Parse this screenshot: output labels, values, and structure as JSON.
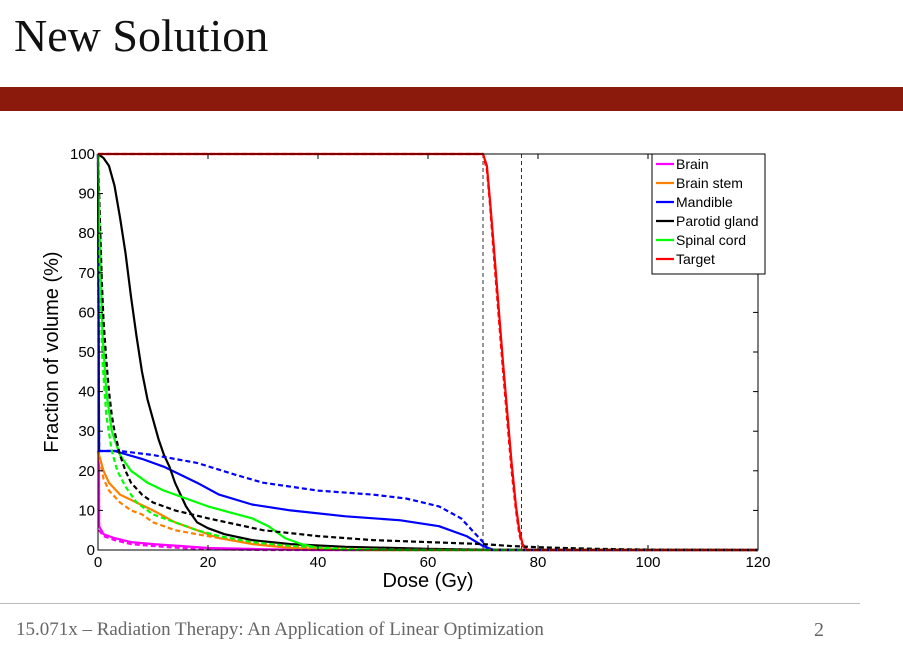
{
  "slide": {
    "title": "New Solution",
    "footer": "15.071x – Radiation Therapy: An Application of  Linear Optimization",
    "page_number": "2",
    "accent_color": "#8b1a0c"
  },
  "chart_data": {
    "type": "line",
    "title": "",
    "xlabel": "Dose (Gy)",
    "ylabel": "Fraction of volume (%)",
    "xlim": [
      0,
      120
    ],
    "ylim": [
      0,
      100
    ],
    "xticks": [
      0,
      20,
      40,
      60,
      80,
      100,
      120
    ],
    "yticks": [
      0,
      10,
      20,
      30,
      40,
      50,
      60,
      70,
      80,
      90,
      100
    ],
    "grid": false,
    "legend_position": "top-right",
    "reference_lines_x": [
      70,
      77
    ],
    "series": [
      {
        "name": "Brain",
        "color": "#ff00ff",
        "style": "solid",
        "points": [
          [
            0,
            100
          ],
          [
            0.2,
            6
          ],
          [
            1,
            4
          ],
          [
            3,
            3
          ],
          [
            6,
            2
          ],
          [
            10,
            1.5
          ],
          [
            15,
            1
          ],
          [
            20,
            0.5
          ],
          [
            30,
            0.2
          ],
          [
            40,
            0
          ],
          [
            120,
            0
          ]
        ]
      },
      {
        "name": "Brain stem",
        "color": "#ff8000",
        "style": "solid",
        "points": [
          [
            0,
            25
          ],
          [
            1,
            20
          ],
          [
            2,
            17
          ],
          [
            4,
            14
          ],
          [
            7,
            12
          ],
          [
            10,
            10
          ],
          [
            14,
            7
          ],
          [
            18,
            5
          ],
          [
            22,
            3
          ],
          [
            28,
            1.5
          ],
          [
            35,
            0.5
          ],
          [
            45,
            0
          ],
          [
            120,
            0
          ]
        ]
      },
      {
        "name": "Mandible",
        "color": "#0000ff",
        "style": "solid",
        "points": [
          [
            0,
            100
          ],
          [
            0.2,
            25
          ],
          [
            3,
            25
          ],
          [
            8,
            23
          ],
          [
            12,
            21
          ],
          [
            18,
            17
          ],
          [
            22,
            14
          ],
          [
            28,
            11.5
          ],
          [
            35,
            10
          ],
          [
            45,
            8.5
          ],
          [
            55,
            7.5
          ],
          [
            62,
            6
          ],
          [
            67,
            3.5
          ],
          [
            70,
            1
          ],
          [
            72,
            0
          ],
          [
            120,
            0
          ]
        ]
      },
      {
        "name": "Parotid gland",
        "color": "#000000",
        "style": "solid",
        "points": [
          [
            0,
            100
          ],
          [
            1,
            99
          ],
          [
            2,
            97
          ],
          [
            3,
            92
          ],
          [
            4,
            84
          ],
          [
            5,
            75
          ],
          [
            6,
            64
          ],
          [
            7,
            54
          ],
          [
            8,
            45
          ],
          [
            9,
            38
          ],
          [
            10,
            33
          ],
          [
            11,
            28
          ],
          [
            12,
            24
          ],
          [
            13,
            21
          ],
          [
            14,
            17
          ],
          [
            15,
            14
          ],
          [
            16,
            11
          ],
          [
            17,
            9
          ],
          [
            18,
            7
          ],
          [
            20,
            5.5
          ],
          [
            23,
            4
          ],
          [
            28,
            2.5
          ],
          [
            35,
            1.5
          ],
          [
            45,
            0.8
          ],
          [
            60,
            0.3
          ],
          [
            70,
            0.1
          ],
          [
            120,
            0
          ]
        ]
      },
      {
        "name": "Spinal cord",
        "color": "#00ff00",
        "style": "solid",
        "points": [
          [
            0,
            100
          ],
          [
            0.3,
            80
          ],
          [
            0.8,
            55
          ],
          [
            1.5,
            40
          ],
          [
            2.5,
            30
          ],
          [
            4,
            24
          ],
          [
            6,
            20
          ],
          [
            9,
            17
          ],
          [
            12,
            15
          ],
          [
            16,
            13
          ],
          [
            20,
            11
          ],
          [
            24,
            9.5
          ],
          [
            28,
            8
          ],
          [
            31,
            6
          ],
          [
            34,
            3
          ],
          [
            37,
            1.5
          ],
          [
            40,
            0.5
          ],
          [
            45,
            0
          ],
          [
            120,
            0
          ]
        ]
      },
      {
        "name": "Target",
        "color": "#ff0000",
        "style": "solid",
        "points": [
          [
            0,
            100
          ],
          [
            70,
            100
          ],
          [
            70.7,
            97
          ],
          [
            71.3,
            88
          ],
          [
            72,
            76
          ],
          [
            72.8,
            62
          ],
          [
            73.6,
            48
          ],
          [
            74.4,
            35
          ],
          [
            75.2,
            22
          ],
          [
            76,
            11
          ],
          [
            76.6,
            5
          ],
          [
            77.2,
            1.5
          ],
          [
            78,
            0
          ],
          [
            120,
            0
          ]
        ]
      },
      {
        "name": "",
        "color": "#ff00ff",
        "style": "dashed",
        "points": [
          [
            0,
            100
          ],
          [
            0.2,
            5
          ],
          [
            1,
            3.5
          ],
          [
            3,
            2.5
          ],
          [
            6,
            1.5
          ],
          [
            10,
            1
          ],
          [
            15,
            0.5
          ],
          [
            20,
            0.2
          ],
          [
            30,
            0
          ],
          [
            120,
            0
          ]
        ]
      },
      {
        "name": "",
        "color": "#ff8000",
        "style": "dashed",
        "points": [
          [
            0,
            25
          ],
          [
            1,
            18
          ],
          [
            2,
            15
          ],
          [
            4,
            12
          ],
          [
            6,
            10
          ],
          [
            8,
            9
          ],
          [
            10,
            7
          ],
          [
            14,
            5
          ],
          [
            18,
            4
          ],
          [
            22,
            3
          ],
          [
            30,
            1.5
          ],
          [
            40,
            0.5
          ],
          [
            50,
            0
          ],
          [
            120,
            0
          ]
        ]
      },
      {
        "name": "",
        "color": "#0000ff",
        "style": "dashed",
        "points": [
          [
            0,
            100
          ],
          [
            0.2,
            25
          ],
          [
            4,
            25
          ],
          [
            10,
            24
          ],
          [
            18,
            22
          ],
          [
            25,
            19
          ],
          [
            30,
            17
          ],
          [
            40,
            15
          ],
          [
            50,
            14
          ],
          [
            56,
            13
          ],
          [
            62,
            11
          ],
          [
            66,
            8
          ],
          [
            68,
            5
          ],
          [
            70,
            2
          ],
          [
            71,
            0
          ],
          [
            120,
            0
          ]
        ]
      },
      {
        "name": "",
        "color": "#000000",
        "style": "dashed",
        "points": [
          [
            0,
            100
          ],
          [
            0.3,
            85
          ],
          [
            0.7,
            68
          ],
          [
            1,
            58
          ],
          [
            1.5,
            48
          ],
          [
            2,
            40
          ],
          [
            2.5,
            34
          ],
          [
            3,
            30
          ],
          [
            4,
            24
          ],
          [
            5,
            20
          ],
          [
            6,
            17
          ],
          [
            8,
            14
          ],
          [
            10,
            12
          ],
          [
            14,
            10
          ],
          [
            20,
            8
          ],
          [
            30,
            5
          ],
          [
            40,
            3.5
          ],
          [
            50,
            2.5
          ],
          [
            60,
            2
          ],
          [
            70,
            1.5
          ],
          [
            75,
            1
          ],
          [
            80,
            0.7
          ],
          [
            90,
            0.3
          ],
          [
            100,
            0.1
          ],
          [
            120,
            0
          ]
        ]
      },
      {
        "name": "",
        "color": "#00ff00",
        "style": "dashed",
        "points": [
          [
            0,
            100
          ],
          [
            0.3,
            70
          ],
          [
            0.8,
            48
          ],
          [
            1.5,
            34
          ],
          [
            2.5,
            25
          ],
          [
            3.5,
            20
          ],
          [
            5,
            16
          ],
          [
            7,
            12
          ],
          [
            10,
            9
          ],
          [
            14,
            7
          ],
          [
            18,
            5
          ],
          [
            22,
            3.5
          ],
          [
            28,
            2
          ],
          [
            35,
            1
          ],
          [
            45,
            0.3
          ],
          [
            55,
            0
          ],
          [
            120,
            0
          ]
        ]
      },
      {
        "name": "",
        "color": "#ff0000",
        "style": "dashed",
        "points": [
          [
            0,
            100
          ],
          [
            70,
            100
          ],
          [
            70.7,
            96
          ],
          [
            71.3,
            87
          ],
          [
            72,
            74
          ],
          [
            72.8,
            60
          ],
          [
            73.6,
            46
          ],
          [
            74.4,
            33
          ],
          [
            75.2,
            20
          ],
          [
            76,
            10
          ],
          [
            76.6,
            4
          ],
          [
            77.2,
            1
          ],
          [
            78,
            0
          ],
          [
            120,
            0
          ]
        ]
      }
    ]
  }
}
